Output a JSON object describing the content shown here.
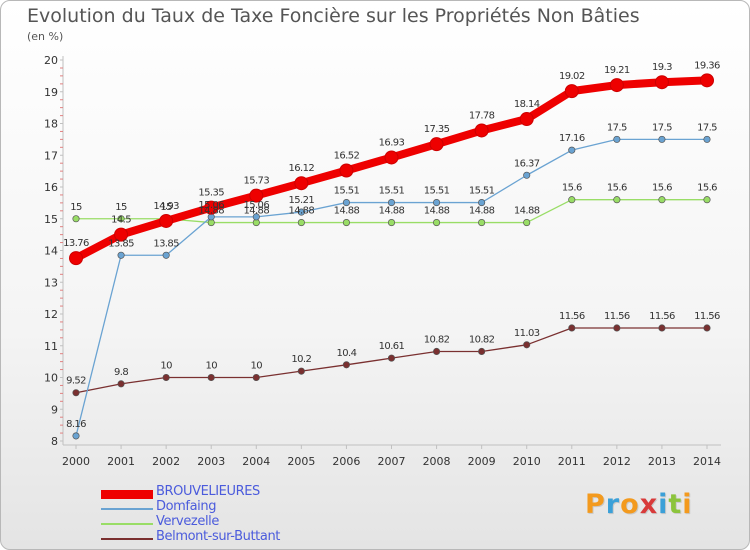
{
  "chart_data": {
    "type": "line",
    "title": "Evolution du Taux de Taxe Foncière sur les Propriétés Non Bâties",
    "subtitle": "(en %)",
    "xlabel": "",
    "ylabel": "",
    "x": [
      "2000",
      "2001",
      "2002",
      "2003",
      "2004",
      "2005",
      "2006",
      "2007",
      "2008",
      "2009",
      "2010",
      "2011",
      "2012",
      "2013",
      "2014"
    ],
    "ylim": [
      8,
      20
    ],
    "yticks": [
      "8",
      "9",
      "10",
      "11",
      "12",
      "13",
      "14",
      "15",
      "16",
      "17",
      "18",
      "19",
      "20"
    ],
    "grid": false,
    "legend_position": "bottom-left",
    "series": [
      {
        "name": "BROUVELIEURES",
        "color": "#ee0000",
        "values": [
          13.76,
          14.5,
          14.93,
          15.35,
          15.73,
          16.12,
          16.52,
          16.93,
          17.35,
          17.78,
          18.14,
          19.02,
          19.21,
          19.3,
          19.36
        ],
        "labels": [
          "13.76",
          "14.5",
          "14.93",
          "15.35",
          "15.73",
          "16.12",
          "16.52",
          "16.93",
          "17.35",
          "17.78",
          "18.14",
          "19.02",
          "19.21",
          "19.3",
          "19.36"
        ]
      },
      {
        "name": "Domfaing",
        "color": "#6aa3d2",
        "values": [
          8.16,
          13.85,
          13.85,
          15.06,
          15.06,
          15.21,
          15.51,
          15.51,
          15.51,
          15.51,
          16.37,
          17.16,
          17.5,
          17.5,
          17.5
        ],
        "labels": [
          "8.16",
          "13.85",
          "13.85",
          "15.06",
          "15.06",
          "15.21",
          "15.51",
          "15.51",
          "15.51",
          "15.51",
          "16.37",
          "17.16",
          "17.5",
          "17.5",
          "17.5"
        ]
      },
      {
        "name": "Vervezelle",
        "color": "#99dd66",
        "values": [
          15,
          15,
          15,
          14.88,
          14.88,
          14.88,
          14.88,
          14.88,
          14.88,
          14.88,
          14.88,
          15.6,
          15.6,
          15.6,
          15.6
        ],
        "labels": [
          "15",
          "15",
          "15",
          "14.88",
          "14.88",
          "14.88",
          "14.88",
          "14.88",
          "14.88",
          "14.88",
          "14.88",
          "15.6",
          "15.6",
          "15.6",
          "15.6"
        ]
      },
      {
        "name": "Belmont-sur-Buttant",
        "color": "#7a3030",
        "values": [
          9.52,
          9.8,
          10,
          10,
          10,
          10.2,
          10.4,
          10.61,
          10.82,
          10.82,
          11.03,
          11.56,
          11.56,
          11.56,
          11.56
        ],
        "labels": [
          "9.52",
          "9.8",
          "10",
          "10",
          "10",
          "10.2",
          "10.4",
          "10.61",
          "10.82",
          "10.82",
          "11.03",
          "11.56",
          "11.56",
          "11.56",
          "11.56"
        ]
      }
    ]
  },
  "legend": {
    "items": [
      {
        "label": "BROUVELIEURES",
        "color": "#ee0000",
        "text_color": "#4b5bdc"
      },
      {
        "label": "Domfaing",
        "color": "#6aa3d2",
        "text_color": "#4b5bdc"
      },
      {
        "label": "Vervezelle",
        "color": "#99dd66",
        "text_color": "#4b5bdc"
      },
      {
        "label": "Belmont-sur-Buttant",
        "color": "#7a3030",
        "text_color": "#4b5bdc"
      }
    ]
  },
  "logo": {
    "letters": [
      {
        "char": "P",
        "color": "#f39a1e"
      },
      {
        "char": "r",
        "color": "#3ba0d8"
      },
      {
        "char": "o",
        "color": "#f39a1e"
      },
      {
        "char": "x",
        "color": "#d83a3a"
      },
      {
        "char": "i",
        "color": "#3ba0d8"
      },
      {
        "char": "t",
        "color": "#8cc43c"
      },
      {
        "char": "i",
        "color": "#f39a1e"
      }
    ]
  }
}
